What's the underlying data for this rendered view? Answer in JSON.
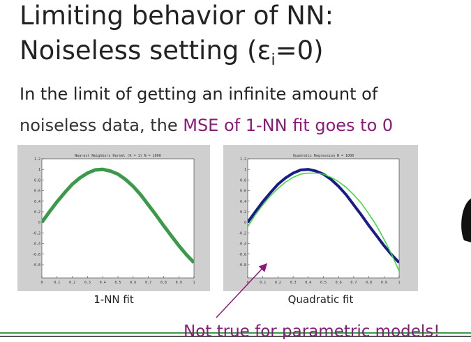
{
  "title": {
    "line1": "Limiting behavior of NN:",
    "line2_start": "Noiseless setting (ε",
    "line2_sub": "i",
    "line2_end": "=0)"
  },
  "body": {
    "line1": "In the limit of getting an infinite amount of",
    "line2_start": "noiseless data, the ",
    "line2_highlight": "MSE of 1-NN fit goes to 0"
  },
  "charts": [
    {
      "type": "line",
      "title": "Nearest Neighbors Kernel (K = 1) N = 1000",
      "caption": "1-NN fit",
      "x": [
        0,
        0.05,
        0.1,
        0.15,
        0.2,
        0.25,
        0.3,
        0.35,
        0.4,
        0.45,
        0.5,
        0.55,
        0.6,
        0.65,
        0.7,
        0.75,
        0.8,
        0.85,
        0.9,
        0.95,
        1
      ],
      "xlim": [
        0,
        1
      ],
      "ylim": [
        -1.05,
        1.2
      ],
      "xticks": [
        0,
        0.1,
        0.2,
        0.3,
        0.4,
        0.5,
        0.6,
        0.7,
        0.8,
        0.9,
        1
      ],
      "yticks": [
        -0.8,
        -0.6,
        -0.4,
        -0.2,
        0,
        0.2,
        0.4,
        0.6,
        0.8,
        1,
        1.2
      ],
      "series": [
        {
          "color": "#3a9a4a",
          "width": 5,
          "values": [
            0,
            0.2,
            0.39,
            0.56,
            0.72,
            0.84,
            0.93,
            0.99,
            1.0,
            0.97,
            0.91,
            0.81,
            0.68,
            0.52,
            0.33,
            0.14,
            -0.06,
            -0.25,
            -0.44,
            -0.61,
            -0.76
          ]
        }
      ]
    },
    {
      "type": "line",
      "title": "Quadratic Regression N = 1000",
      "caption": "Quadratic fit",
      "x": [
        0,
        0.05,
        0.1,
        0.15,
        0.2,
        0.25,
        0.3,
        0.35,
        0.4,
        0.45,
        0.5,
        0.55,
        0.6,
        0.65,
        0.7,
        0.75,
        0.8,
        0.85,
        0.9,
        0.95,
        1
      ],
      "xlim": [
        0,
        1
      ],
      "ylim": [
        -1.05,
        1.2
      ],
      "xticks": [
        0,
        0.1,
        0.2,
        0.3,
        0.4,
        0.5,
        0.6,
        0.7,
        0.8,
        0.9,
        1
      ],
      "yticks": [
        -0.8,
        -0.6,
        -0.4,
        -0.2,
        0,
        0.2,
        0.4,
        0.6,
        0.8,
        1,
        1.2
      ],
      "series": [
        {
          "color": "#1a1a8a",
          "width": 4,
          "values": [
            0,
            0.2,
            0.39,
            0.56,
            0.72,
            0.84,
            0.93,
            0.99,
            1.0,
            0.97,
            0.91,
            0.81,
            0.68,
            0.52,
            0.33,
            0.14,
            -0.06,
            -0.25,
            -0.44,
            -0.61,
            -0.76
          ]
        },
        {
          "color": "#33dd33",
          "width": 1.5,
          "values": [
            -0.08,
            0.14,
            0.33,
            0.5,
            0.64,
            0.76,
            0.85,
            0.91,
            0.93,
            0.93,
            0.91,
            0.85,
            0.77,
            0.66,
            0.52,
            0.36,
            0.16,
            -0.06,
            -0.32,
            -0.6,
            -0.92
          ]
        }
      ]
    }
  ],
  "annotation": "Not true for parametric models!"
}
